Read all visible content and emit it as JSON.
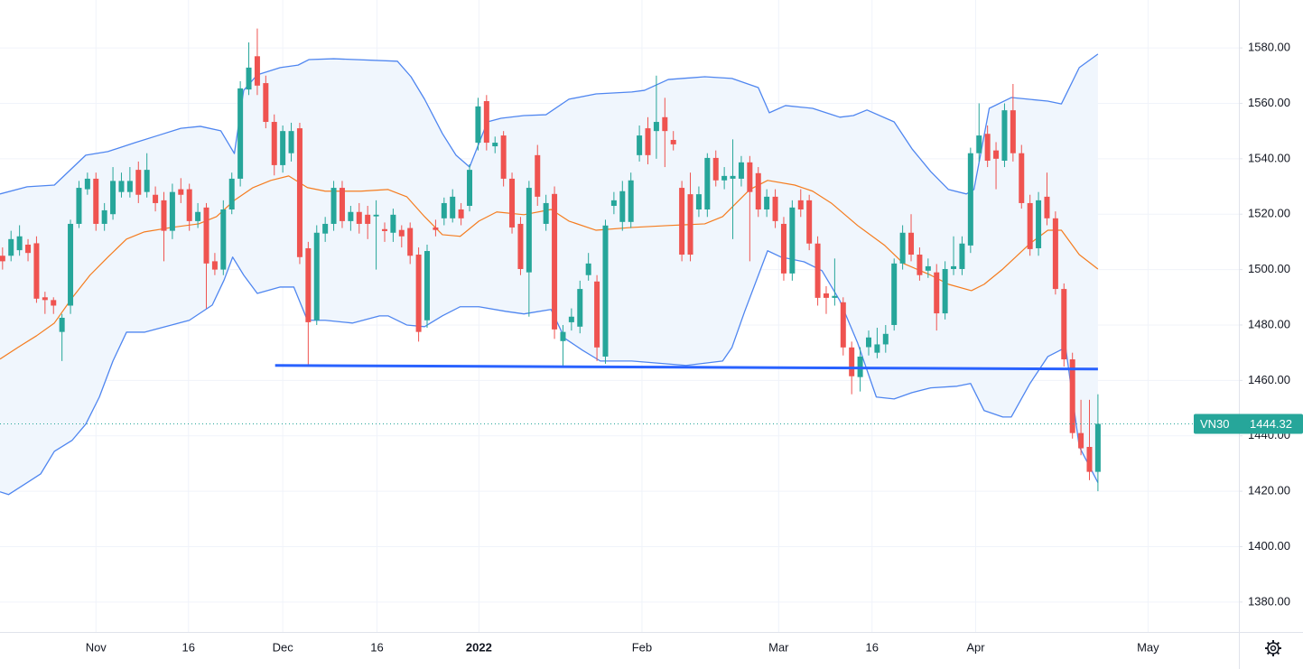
{
  "chart_data": {
    "type": "candlestick",
    "series": [
      {
        "name": "VN30",
        "up_color": "#26a69a",
        "down_color": "#ef5350",
        "open": [
          1505,
          1505,
          1507,
          1509,
          1509.5,
          1490,
          1489,
          1477.5,
          1487,
          1516.5,
          1529,
          1532.8,
          1516.5,
          1520,
          1528,
          1528,
          1536,
          1528,
          1527,
          1525,
          1514,
          1529,
          1529,
          1517.5,
          1522.4,
          1503,
          1500,
          1521.7,
          1532.8,
          1565,
          1577,
          1567.3,
          1553.3,
          1537.7,
          1542,
          1551,
          1507.7,
          1481.7,
          1513,
          1516.5,
          1529.5,
          1517.5,
          1520.8,
          1519.8,
          1519.2,
          1514.6,
          1513.3,
          1514.3,
          1515,
          1505.4,
          1481.7,
          1515.2,
          1518.5,
          1518.5,
          1521.7,
          1523,
          1545.8,
          1560.8,
          1544.5,
          1548.4,
          1532.8,
          1516.5,
          1499,
          1541.3,
          1516.5,
          1527.3,
          1474.2,
          1481,
          1479.4,
          1498,
          1495.7,
          1468.6,
          1523,
          1517.2,
          1517.2,
          1541.3,
          1551,
          1550,
          1555,
          1546.8,
          1529.5,
          1527.2,
          1521.7,
          1521.7,
          1540.3,
          1532.2,
          1532.8,
          1532.8,
          1538.7,
          1534.8,
          1521.7,
          1526.3,
          1516.5,
          1498.6,
          1525,
          1525,
          1509.4,
          1491.4,
          1489.8,
          1488.2,
          1471.9,
          1461.2,
          1472,
          1470,
          1473,
          1480,
          1502.2,
          1513.3,
          1505.4,
          1499.6,
          1499,
          1484.2,
          1500.2,
          1500.2,
          1508.7,
          1542,
          1549,
          1543,
          1539.3,
          1557.5,
          1542,
          1524,
          1507.7,
          1526.3,
          1518.5,
          1493,
          1467.6,
          1441,
          1436,
          1427
        ],
        "high": [
          1508,
          1514,
          1516,
          1511,
          1512,
          1492,
          1490,
          1484,
          1518,
          1532,
          1535,
          1535,
          1524,
          1537,
          1535,
          1537,
          1539,
          1542,
          1530,
          1528,
          1531,
          1533,
          1531,
          1524,
          1524,
          1506,
          1525,
          1535,
          1568,
          1582,
          1587,
          1570,
          1556,
          1552,
          1553,
          1553,
          1510,
          1516,
          1519,
          1532,
          1532,
          1523,
          1524,
          1523,
          1525,
          1517,
          1522,
          1516,
          1517,
          1508,
          1509,
          1518,
          1526,
          1529,
          1524,
          1538,
          1562,
          1563,
          1548,
          1550,
          1535,
          1519,
          1532,
          1545,
          1527,
          1530,
          1480,
          1486,
          1496,
          1506,
          1498,
          1518,
          1528,
          1532,
          1535,
          1552,
          1555,
          1570,
          1562,
          1550,
          1532,
          1535,
          1530,
          1542,
          1543,
          1537,
          1547,
          1541,
          1541,
          1537,
          1529,
          1529,
          1519,
          1525,
          1529,
          1527,
          1512,
          1494,
          1504,
          1490,
          1474,
          1472,
          1478,
          1479,
          1480,
          1504,
          1516,
          1520,
          1508,
          1504,
          1502,
          1503,
          1512,
          1512,
          1544,
          1560,
          1552,
          1546,
          1560,
          1567,
          1545,
          1527,
          1528,
          1535,
          1521,
          1495,
          1470,
          1453,
          1453,
          1455
        ],
        "low": [
          1500,
          1503,
          1505,
          1503,
          1488,
          1484,
          1484,
          1467,
          1484,
          1515,
          1527,
          1514,
          1514,
          1518,
          1526,
          1526,
          1524,
          1526,
          1521,
          1503,
          1511,
          1524,
          1514,
          1515,
          1486,
          1498,
          1498,
          1520,
          1530,
          1563,
          1563,
          1551,
          1534,
          1535,
          1539,
          1502,
          1465,
          1480,
          1510,
          1514,
          1515,
          1514,
          1513,
          1511,
          1500,
          1510,
          1510,
          1508,
          1502,
          1474,
          1479,
          1512,
          1516,
          1517,
          1516,
          1521,
          1543,
          1543,
          1542,
          1530,
          1513,
          1498,
          1483,
          1523,
          1514,
          1475,
          1465,
          1478,
          1477,
          1496,
          1467,
          1466,
          1520,
          1514,
          1515,
          1539,
          1538,
          1540,
          1537,
          1543,
          1503,
          1503,
          1519,
          1519,
          1530,
          1529,
          1511,
          1530,
          1503,
          1519,
          1519,
          1515,
          1496,
          1496,
          1519,
          1507,
          1487,
          1484,
          1487,
          1469,
          1455,
          1456,
          1469,
          1468,
          1470,
          1478,
          1500,
          1503,
          1496,
          1497,
          1478,
          1482,
          1498,
          1498,
          1506,
          1539,
          1537,
          1529,
          1537,
          1539,
          1522,
          1505,
          1505,
          1516,
          1491,
          1465,
          1439,
          1433,
          1424,
          1420
        ],
        "close": [
          1503,
          1511,
          1512,
          1506,
          1489.5,
          1489,
          1487,
          1482.6,
          1516.5,
          1529.5,
          1532.8,
          1516.5,
          1521.4,
          1532,
          1532,
          1532,
          1527,
          1536,
          1524,
          1514,
          1528,
          1527,
          1517.5,
          1520.8,
          1502.2,
          1500,
          1521.7,
          1532.8,
          1565.4,
          1572.9,
          1566.4,
          1553.3,
          1537.7,
          1550,
          1550,
          1504.5,
          1481,
          1513.3,
          1516.5,
          1529.5,
          1517.5,
          1520.8,
          1516.5,
          1516.5,
          1519.8,
          1513.9,
          1519.8,
          1512,
          1505,
          1477.5,
          1506.7,
          1514.3,
          1524,
          1526.3,
          1518.5,
          1536,
          1558.9,
          1545.8,
          1545.8,
          1532.8,
          1515.2,
          1500.2,
          1529.5,
          1526.3,
          1524,
          1478.4,
          1477.5,
          1483,
          1493,
          1502.2,
          1471.9,
          1515.9,
          1525,
          1528.3,
          1532.2,
          1548.4,
          1541.3,
          1553.3,
          1550,
          1545.2,
          1505.4,
          1505.4,
          1527.2,
          1540.3,
          1532.2,
          1533.8,
          1533.8,
          1538.7,
          1528,
          1521.7,
          1526.3,
          1517.5,
          1498.6,
          1522.4,
          1521.7,
          1509.4,
          1489.8,
          1489.8,
          1490.5,
          1471.9,
          1461.5,
          1468.6,
          1475.5,
          1473,
          1476.8,
          1502.2,
          1513.3,
          1505.4,
          1498,
          1501.2,
          1484.2,
          1500.2,
          1501.2,
          1509.4,
          1542,
          1548.4,
          1539.3,
          1540,
          1557.5,
          1542,
          1524,
          1507.4,
          1525,
          1518.5,
          1493,
          1467.6,
          1441,
          1435.5,
          1427,
          1444.32
        ]
      }
    ],
    "bands": {
      "fill": "#f0f6fd",
      "upper": {
        "color": "#4f86f0",
        "x": [
          -0.3,
          2.9,
          6.1,
          9.8,
          12.4,
          15.6,
          18.3,
          21.0,
          23.3,
          25.7,
          27.3,
          28.4,
          30.0,
          32.7,
          34.8,
          36.1,
          39.0,
          46.5,
          48.1,
          49.7,
          51.8,
          53.4,
          55.0,
          57.1,
          58.7,
          61.4,
          64.0,
          66.7,
          69.9,
          74.1,
          75.6,
          78.4,
          82.7,
          85.9,
          89.0,
          90.3,
          92.2,
          95.4,
          98.6,
          100.2,
          101.8,
          105.0,
          107.1,
          109.3,
          111.4,
          113.5,
          114.4,
          116.2,
          118.8,
          123.1,
          124.7,
          126.8,
          129
        ],
        "values": [
          1527.3,
          1529.9,
          1530.5,
          1541.3,
          1542.6,
          1545.8,
          1548.4,
          1551.0,
          1551.7,
          1550.1,
          1541.9,
          1564.7,
          1570.3,
          1572.9,
          1573.8,
          1575.8,
          1576.1,
          1575.2,
          1569.6,
          1561.5,
          1549.1,
          1541.3,
          1537.0,
          1553.3,
          1554.6,
          1555.6,
          1555.9,
          1561.5,
          1563.4,
          1564.1,
          1564.7,
          1568.6,
          1569.6,
          1569.0,
          1565.7,
          1556.6,
          1559.2,
          1558.2,
          1555.0,
          1555.6,
          1557.6,
          1553.3,
          1543.6,
          1535.4,
          1528.9,
          1527.3,
          1528.9,
          1558.2,
          1562.1,
          1560.8,
          1559.8,
          1572.9,
          1577.8
        ]
      },
      "lower": {
        "color": "#4f86f0",
        "x": [
          -0.3,
          0.7,
          2.9,
          4.5,
          6.1,
          8.2,
          9.8,
          11.4,
          13.0,
          14.6,
          16.7,
          19.9,
          22.0,
          24.7,
          26.1,
          27.1,
          28.4,
          30.0,
          32.7,
          34.3,
          35.9,
          38.0,
          41.2,
          44.4,
          45.4,
          47.6,
          49.7,
          51.8,
          53.9,
          56.1,
          59.3,
          61.4,
          64.6,
          66.2,
          68.3,
          70.4,
          74.1,
          80.5,
          84.8,
          85.9,
          87.4,
          90.1,
          91.7,
          94.4,
          96.5,
          98.6,
          100.7,
          102.9,
          105.0,
          107.1,
          109.3,
          112.4,
          114.0,
          115.6,
          117.8,
          118.8,
          121.0,
          123.1,
          125.2,
          126.8,
          129
        ],
        "values": [
          1419.8,
          1418.8,
          1423.1,
          1426.3,
          1434.4,
          1438.4,
          1444.2,
          1454.0,
          1467.0,
          1477.4,
          1477.4,
          1480.0,
          1481.7,
          1487.2,
          1496.3,
          1504.5,
          1498.0,
          1491.4,
          1493.7,
          1493.7,
          1481.7,
          1481.7,
          1480.7,
          1483.3,
          1483.3,
          1480.0,
          1479.4,
          1483.3,
          1486.6,
          1486.6,
          1484.9,
          1484.0,
          1485.6,
          1475.2,
          1470.9,
          1467.0,
          1467.0,
          1465.4,
          1467.0,
          1471.9,
          1484.9,
          1506.8,
          1504.5,
          1502.8,
          1499.6,
          1488.8,
          1473.5,
          1454.0,
          1453.3,
          1455.6,
          1457.3,
          1457.9,
          1458.9,
          1449.1,
          1446.8,
          1446.8,
          1458.9,
          1468.6,
          1471.9,
          1436.1,
          1423.1
        ]
      },
      "middle": {
        "color": "#f57c1f",
        "x": [
          -0.3,
          1.8,
          4.0,
          6.1,
          8.2,
          10.3,
          12.4,
          14.6,
          16.7,
          19.9,
          23.1,
          25.2,
          27.3,
          29.5,
          31.6,
          33.7,
          35.9,
          38.0,
          42.2,
          45.4,
          47.6,
          49.7,
          51.8,
          53.9,
          56.1,
          58.2,
          61.4,
          64.6,
          66.7,
          69.9,
          74.1,
          78.4,
          82.7,
          84.8,
          88.0,
          90.1,
          93.3,
          95.4,
          97.6,
          100.7,
          103.9,
          106.1,
          109.3,
          111.4,
          114.1,
          115.6,
          117.8,
          121.0,
          123.1,
          124.7,
          126.8,
          129
        ],
        "values": [
          1467.7,
          1471.9,
          1476.1,
          1480.7,
          1489.8,
          1498.0,
          1504.5,
          1511.0,
          1513.6,
          1515.2,
          1516.5,
          1519.1,
          1525.0,
          1529.6,
          1532.2,
          1533.8,
          1529.6,
          1528.3,
          1528.3,
          1528.9,
          1526.3,
          1519.1,
          1512.6,
          1512.0,
          1517.5,
          1520.8,
          1519.8,
          1521.7,
          1517.5,
          1514.2,
          1515.2,
          1515.9,
          1516.5,
          1519.1,
          1528.9,
          1532.2,
          1530.5,
          1528.3,
          1524.0,
          1515.9,
          1508.7,
          1502.2,
          1498.0,
          1494.7,
          1492.4,
          1494.7,
          1500.2,
          1509.4,
          1514.2,
          1514.2,
          1505.4,
          1500.2
        ]
      }
    },
    "trendline": {
      "color": "#2962ff",
      "x": [
        32.1,
        129
      ],
      "values": [
        1465.4,
        1464.1
      ]
    },
    "xlim": [
      -0.3,
      145.6
    ],
    "ylim": [
      1369.2,
      1597.3
    ],
    "xticks": [
      {
        "value": 11.0,
        "label": "Nov"
      },
      {
        "value": 21.9,
        "label": "16"
      },
      {
        "value": 33.0,
        "label": "Dec"
      },
      {
        "value": 44.1,
        "label": "16"
      },
      {
        "value": 56.1,
        "label": "2022"
      },
      {
        "value": 75.3,
        "label": "Feb"
      },
      {
        "value": 91.4,
        "label": "Mar"
      },
      {
        "value": 102.4,
        "label": "16"
      },
      {
        "value": 114.6,
        "label": "Apr"
      },
      {
        "value": 134.9,
        "label": "May"
      }
    ],
    "yticks": [
      {
        "value": 1380,
        "label": "1380.00"
      },
      {
        "value": 1400,
        "label": "1400.00"
      },
      {
        "value": 1420,
        "label": "1420.00"
      },
      {
        "value": 1440,
        "label": "1440.00"
      },
      {
        "value": 1460,
        "label": "1460.00"
      },
      {
        "value": 1480,
        "label": "1480.00"
      },
      {
        "value": 1500,
        "label": "1500.00"
      },
      {
        "value": 1520,
        "label": "1520.00"
      },
      {
        "value": 1540,
        "label": "1540.00"
      },
      {
        "value": 1560,
        "label": "1560.00"
      },
      {
        "value": 1580,
        "label": "1580.00"
      }
    ],
    "grid": true
  }
}
